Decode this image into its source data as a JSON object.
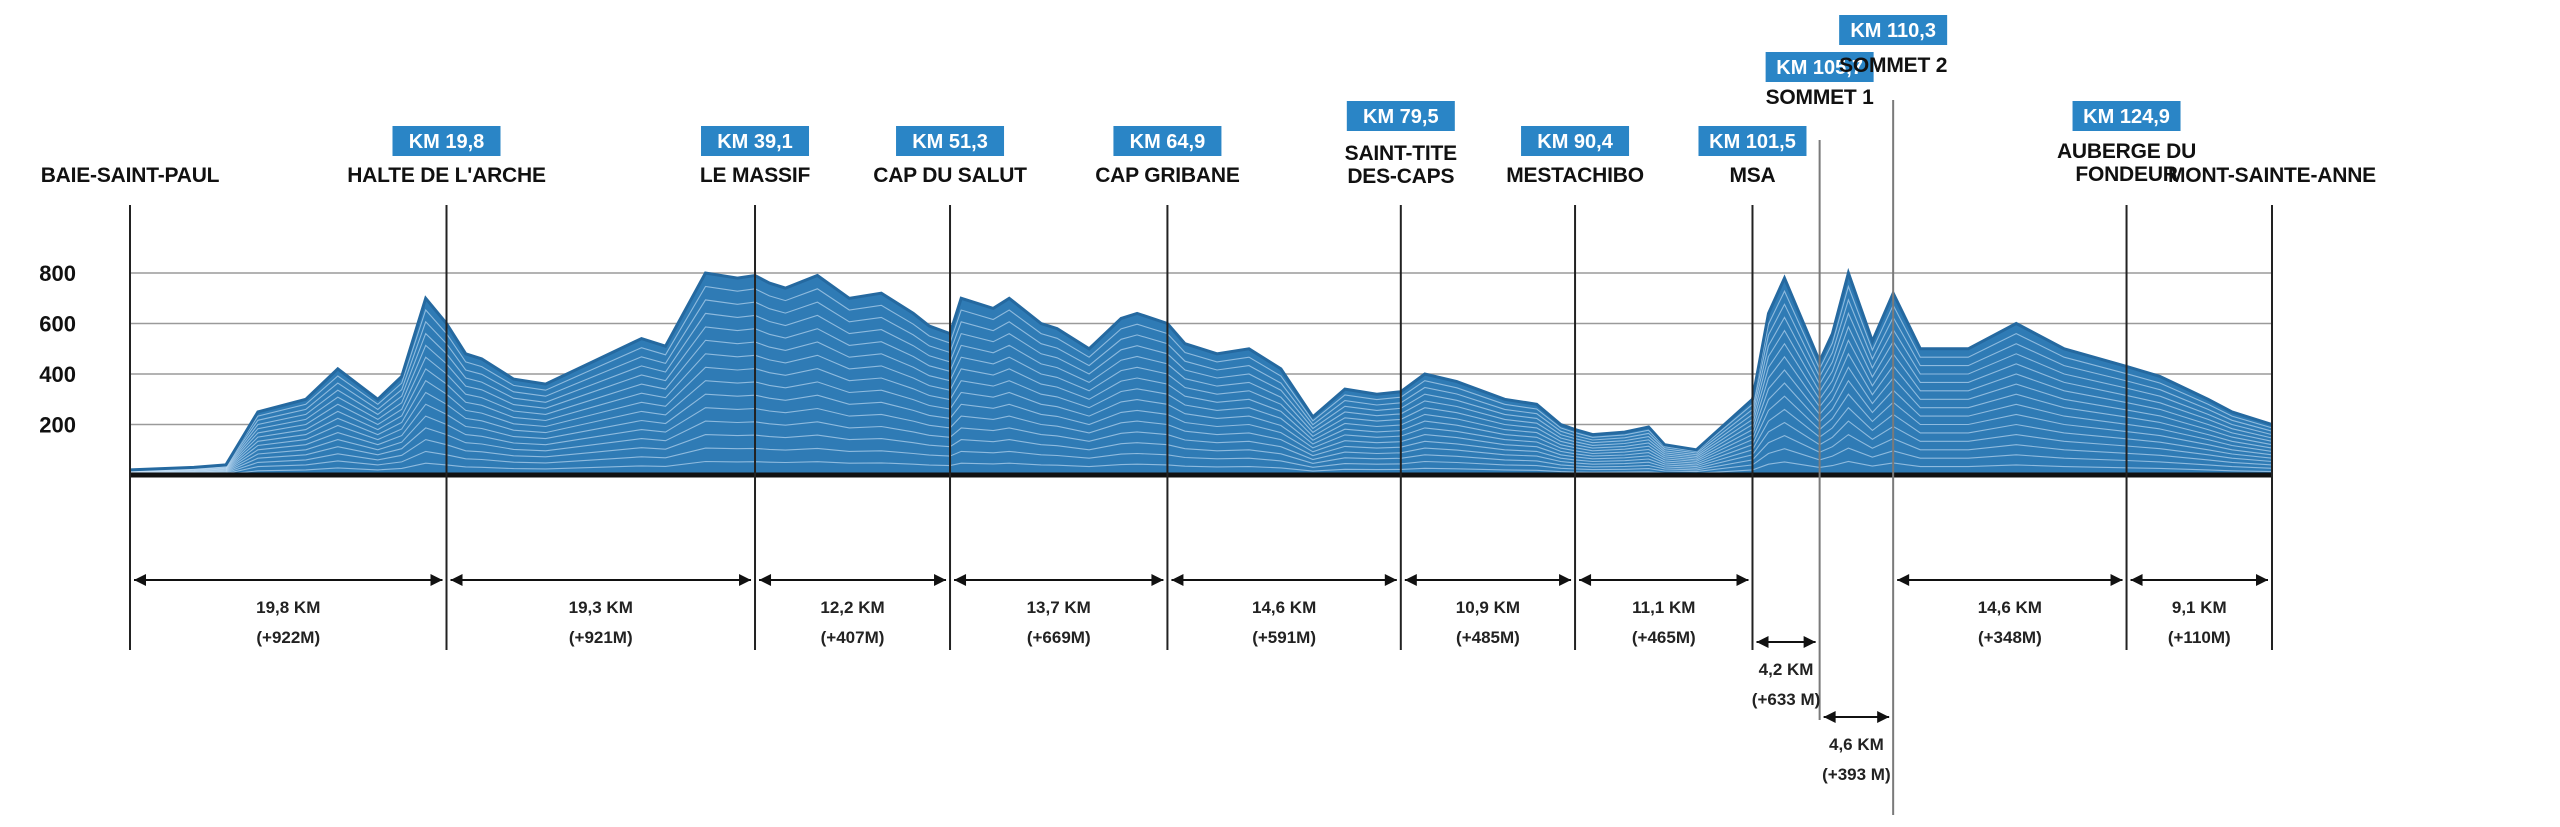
{
  "chart_data": {
    "type": "area",
    "title": "",
    "xlabel": "",
    "ylabel": "",
    "x_unit": "km",
    "ylim": [
      0,
      900
    ],
    "yticks": [
      200,
      400,
      600,
      800
    ],
    "grid": true,
    "colors": {
      "fill": "#2f7bb5",
      "line": "#2569a0",
      "highlight": "#dcefff",
      "badge": "#2a85c6"
    },
    "points": [
      [
        0,
        20
      ],
      [
        4,
        30
      ],
      [
        6,
        40
      ],
      [
        8,
        250
      ],
      [
        11,
        300
      ],
      [
        13,
        420
      ],
      [
        15.5,
        300
      ],
      [
        17,
        390
      ],
      [
        18.5,
        700
      ],
      [
        19.8,
        600
      ],
      [
        21,
        480
      ],
      [
        22,
        460
      ],
      [
        24,
        380
      ],
      [
        26,
        360
      ],
      [
        29,
        450
      ],
      [
        32,
        540
      ],
      [
        33.5,
        510
      ],
      [
        36,
        800
      ],
      [
        38,
        780
      ],
      [
        39.1,
        790
      ],
      [
        40,
        760
      ],
      [
        41,
        740
      ],
      [
        43,
        790
      ],
      [
        45,
        700
      ],
      [
        47,
        720
      ],
      [
        49,
        640
      ],
      [
        50,
        590
      ],
      [
        51.3,
        560
      ],
      [
        52,
        700
      ],
      [
        54,
        660
      ],
      [
        55,
        700
      ],
      [
        57,
        600
      ],
      [
        58,
        580
      ],
      [
        60,
        500
      ],
      [
        62,
        620
      ],
      [
        63,
        640
      ],
      [
        64.9,
        600
      ],
      [
        66,
        520
      ],
      [
        68,
        480
      ],
      [
        70,
        500
      ],
      [
        72,
        420
      ],
      [
        74,
        230
      ],
      [
        76,
        340
      ],
      [
        78,
        320
      ],
      [
        79.5,
        330
      ],
      [
        81,
        400
      ],
      [
        83,
        370
      ],
      [
        86,
        300
      ],
      [
        88,
        280
      ],
      [
        89.5,
        200
      ],
      [
        90.4,
        180
      ],
      [
        91.5,
        160
      ],
      [
        93.5,
        170
      ],
      [
        95,
        190
      ],
      [
        96,
        120
      ],
      [
        98,
        100
      ],
      [
        101.5,
        300
      ],
      [
        102.5,
        640
      ],
      [
        103.5,
        780
      ],
      [
        105.7,
        450
      ],
      [
        106.5,
        560
      ],
      [
        107.5,
        800
      ],
      [
        109,
        530
      ],
      [
        110.3,
        720
      ],
      [
        112,
        500
      ],
      [
        115,
        500
      ],
      [
        118,
        600
      ],
      [
        121,
        500
      ],
      [
        124.9,
        430
      ],
      [
        127,
        390
      ],
      [
        130,
        300
      ],
      [
        131.5,
        250
      ],
      [
        134,
        200
      ]
    ],
    "stations": [
      {
        "name": "BAIE-SAINT-PAUL",
        "km": 0,
        "badge": ""
      },
      {
        "name": "HALTE DE L'ARCHE",
        "km": 19.8,
        "badge": "KM 19,8"
      },
      {
        "name": "LE MASSIF",
        "km": 39.1,
        "badge": "KM 39,1"
      },
      {
        "name": "CAP DU SALUT",
        "km": 51.3,
        "badge": "KM 51,3"
      },
      {
        "name": "CAP GRIBANE",
        "km": 64.9,
        "badge": "KM 64,9"
      },
      {
        "name": "SAINT-TITE DES-CAPS",
        "lines": [
          "SAINT-TITE",
          "DES-CAPS"
        ],
        "km": 79.5,
        "badge": "KM 79,5"
      },
      {
        "name": "MESTACHIBO",
        "km": 90.4,
        "badge": "KM 90,4"
      },
      {
        "name": "MSA",
        "km": 101.5,
        "badge": "KM 101,5"
      },
      {
        "name": "SOMMET 1",
        "km": 105.7,
        "badge": "KM 105,7"
      },
      {
        "name": "SOMMET 2",
        "km": 110.3,
        "badge": "KM 110,3"
      },
      {
        "name": "AUBERGE DU FONDEUR",
        "lines": [
          "AUBERGE DU",
          "FONDEUR"
        ],
        "km": 124.9,
        "badge": "KM 124,9"
      },
      {
        "name": "MONT-SAINTE-ANNE",
        "km": 134,
        "badge": ""
      }
    ],
    "segments": [
      {
        "from": 0,
        "to": 19.8,
        "dist": "19,8 KM",
        "gain": "(+922M)"
      },
      {
        "from": 19.8,
        "to": 39.1,
        "dist": "19,3 KM",
        "gain": "(+921M)"
      },
      {
        "from": 39.1,
        "to": 51.3,
        "dist": "12,2 KM",
        "gain": "(+407M)"
      },
      {
        "from": 51.3,
        "to": 64.9,
        "dist": "13,7 KM",
        "gain": "(+669M)"
      },
      {
        "from": 64.9,
        "to": 79.5,
        "dist": "14,6 KM",
        "gain": "(+591M)"
      },
      {
        "from": 79.5,
        "to": 90.4,
        "dist": "10,9 KM",
        "gain": "(+485M)"
      },
      {
        "from": 90.4,
        "to": 101.5,
        "dist": "11,1 KM",
        "gain": "(+465M)"
      },
      {
        "from": 101.5,
        "to": 105.7,
        "dist": "4,2 KM",
        "gain": "(+633 M)"
      },
      {
        "from": 105.7,
        "to": 110.3,
        "dist": "4,6 KM",
        "gain": "(+393 M)"
      },
      {
        "from": 110.3,
        "to": 124.9,
        "dist": "14,6 KM",
        "gain": "(+348M)"
      },
      {
        "from": 124.9,
        "to": 134,
        "dist": "9,1 KM",
        "gain": "(+110M)"
      }
    ]
  }
}
